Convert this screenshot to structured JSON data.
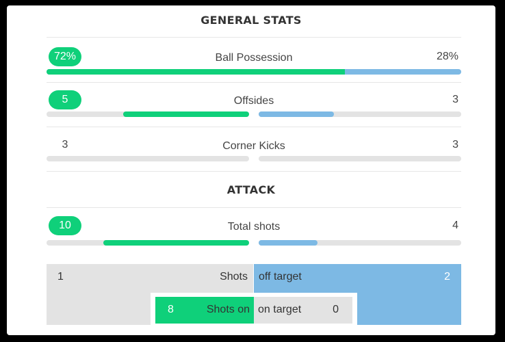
{
  "colors": {
    "home": "#0fd07a",
    "away": "#7db9e4",
    "track": "#e3e3e3"
  },
  "general": {
    "title": "GENERAL STATS",
    "possession": {
      "label": "Ball Possession",
      "home": "72%",
      "away": "28%",
      "home_pct": 72,
      "away_pct": 28
    },
    "offsides": {
      "label": "Offsides",
      "home": "5",
      "away": "3",
      "home_fill": 0.62,
      "away_fill": 0.37
    },
    "corners": {
      "label": "Corner Kicks",
      "home": "3",
      "away": "3",
      "home_fill": 0,
      "away_fill": 0
    }
  },
  "attack": {
    "title": "ATTACK",
    "total_shots": {
      "label": "Total shots",
      "home": "10",
      "away": "4",
      "home_fill": 0.72,
      "away_fill": 0.29
    },
    "shots_off": {
      "label_left": "Shots",
      "label_right": "off target",
      "home": "1",
      "away": "2"
    },
    "shots_on": {
      "label_left": "Shots on",
      "label_right": "on target",
      "home": "8",
      "away": "0"
    }
  }
}
